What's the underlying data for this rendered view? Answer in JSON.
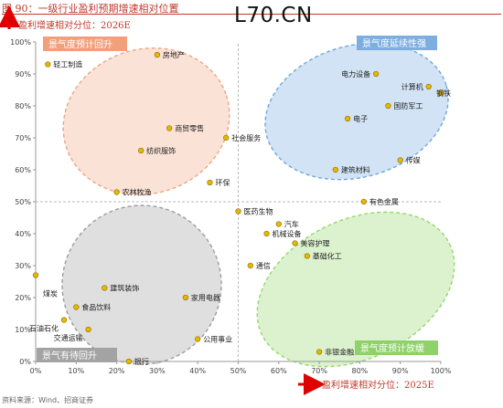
{
  "figure_title": "图 90：一级行业盈利预期增速相对位置",
  "watermark": "L70.CN",
  "source": "资料来源：Wind、招商证券",
  "chart_data": {
    "type": "scatter",
    "xlabel": "盈利增速相对分位：2025E",
    "ylabel": "盈利增速相对分位：2026E",
    "xlim": [
      0,
      100
    ],
    "ylim": [
      0,
      100
    ],
    "x_ticks": [
      "0%",
      "10%",
      "20%",
      "30%",
      "40%",
      "50%",
      "60%",
      "70%",
      "80%",
      "90%",
      "100%"
    ],
    "y_ticks": [
      "0%",
      "10%",
      "20%",
      "30%",
      "40%",
      "50%",
      "60%",
      "70%",
      "80%",
      "90%",
      "100%"
    ],
    "reference_lines": {
      "x": 50,
      "y": 50
    },
    "grid": false,
    "point_color": "#e8b800",
    "points": [
      {
        "label": "轻工制造",
        "x": 3,
        "y": 93
      },
      {
        "label": "房地产",
        "x": 30,
        "y": 96
      },
      {
        "label": "商贸零售",
        "x": 33,
        "y": 73
      },
      {
        "label": "纺织服饰",
        "x": 26,
        "y": 66
      },
      {
        "label": "社会服务",
        "x": 47,
        "y": 70
      },
      {
        "label": "环保",
        "x": 43,
        "y": 56
      },
      {
        "label": "农林牧渔",
        "x": 20,
        "y": 53
      },
      {
        "label": "电力设备",
        "x": 84,
        "y": 90
      },
      {
        "label": "计算机",
        "x": 97,
        "y": 86
      },
      {
        "label": "钢铁",
        "x": 100,
        "y": 84
      },
      {
        "label": "国防军工",
        "x": 87,
        "y": 80
      },
      {
        "label": "电子",
        "x": 77,
        "y": 76
      },
      {
        "label": "传媒",
        "x": 90,
        "y": 63
      },
      {
        "label": "建筑材料",
        "x": 74,
        "y": 60
      },
      {
        "label": "有色金属",
        "x": 81,
        "y": 50
      },
      {
        "label": "医药生物",
        "x": 50,
        "y": 47
      },
      {
        "label": "汽车",
        "x": 60,
        "y": 43
      },
      {
        "label": "机械设备",
        "x": 57,
        "y": 40
      },
      {
        "label": "美容护理",
        "x": 64,
        "y": 37
      },
      {
        "label": "基础化工",
        "x": 67,
        "y": 33
      },
      {
        "label": "通信",
        "x": 53,
        "y": 30
      },
      {
        "label": "煤炭",
        "x": 0,
        "y": 27
      },
      {
        "label": "建筑装饰",
        "x": 17,
        "y": 23
      },
      {
        "label": "家用电器",
        "x": 37,
        "y": 20
      },
      {
        "label": "食品饮料",
        "x": 10,
        "y": 17
      },
      {
        "label": "石油石化",
        "x": 7,
        "y": 13
      },
      {
        "label": "交通运输",
        "x": 13,
        "y": 10
      },
      {
        "label": "公用事业",
        "x": 40,
        "y": 7
      },
      {
        "label": "银行",
        "x": 23,
        "y": 0
      },
      {
        "label": "非银金融",
        "x": 70,
        "y": 3
      }
    ],
    "regions": [
      {
        "label": "景气度预计回升",
        "color": "#f0a480",
        "label_bg": "#f2a07c"
      },
      {
        "label": "景气度延续性强",
        "color": "#6fa8dc",
        "label_bg": "#7eaee0"
      },
      {
        "label": "景气有待回升",
        "color": "#9c9c9c",
        "label_bg": "#a3a3a3"
      },
      {
        "label": "景气度预计放缓",
        "color": "#93d86a",
        "label_bg": "#8fd16a"
      }
    ]
  }
}
